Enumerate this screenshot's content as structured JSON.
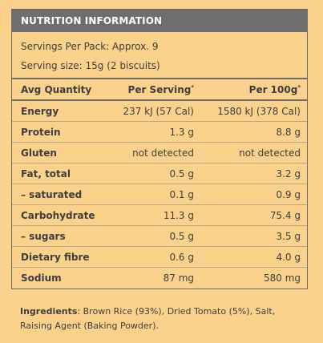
{
  "panel": {
    "title": "NUTRITION INFORMATION",
    "servings_per_pack": "Servings Per Pack: Approx. 9",
    "serving_size": "Serving size: 15g (2 biscuits)"
  },
  "table": {
    "headers": {
      "quantity": "Avg Quantity",
      "per_serving": "Per Serving",
      "per_serving_mark": "*",
      "per_100g": "Per 100g",
      "per_100g_mark": "*"
    },
    "rows": [
      {
        "label": "Energy",
        "per_serving": "237 kJ (57 Cal)",
        "per_100g": "1580 kJ (378 Cal)"
      },
      {
        "label": "Protein",
        "per_serving": "1.3 g",
        "per_100g": "8.8 g"
      },
      {
        "label": "Gluten",
        "per_serving": "not detected",
        "per_100g": "not detected"
      },
      {
        "label": "Fat, total",
        "per_serving": "0.5 g",
        "per_100g": "3.2 g"
      },
      {
        "label": "– saturated",
        "per_serving": "0.1 g",
        "per_100g": "0.9 g"
      },
      {
        "label": "Carbohydrate",
        "per_serving": "11.3 g",
        "per_100g": "75.4 g"
      },
      {
        "label": "– sugars",
        "per_serving": "0.5 g",
        "per_100g": "3.5 g"
      },
      {
        "label": "Dietary fibre",
        "per_serving": "0.6 g",
        "per_100g": "4.0 g"
      },
      {
        "label": "Sodium",
        "per_serving": "87 mg",
        "per_100g": "580 mg"
      }
    ]
  },
  "ingredients": {
    "label": "Ingredients",
    "text": ": Brown Rice (93%), Dried Tomato (5%), Salt, Raising Agent (Baking Powder)."
  },
  "colors": {
    "background": "#fbd28b",
    "header": "#6e6e6e",
    "text": "#3e3e3e"
  }
}
